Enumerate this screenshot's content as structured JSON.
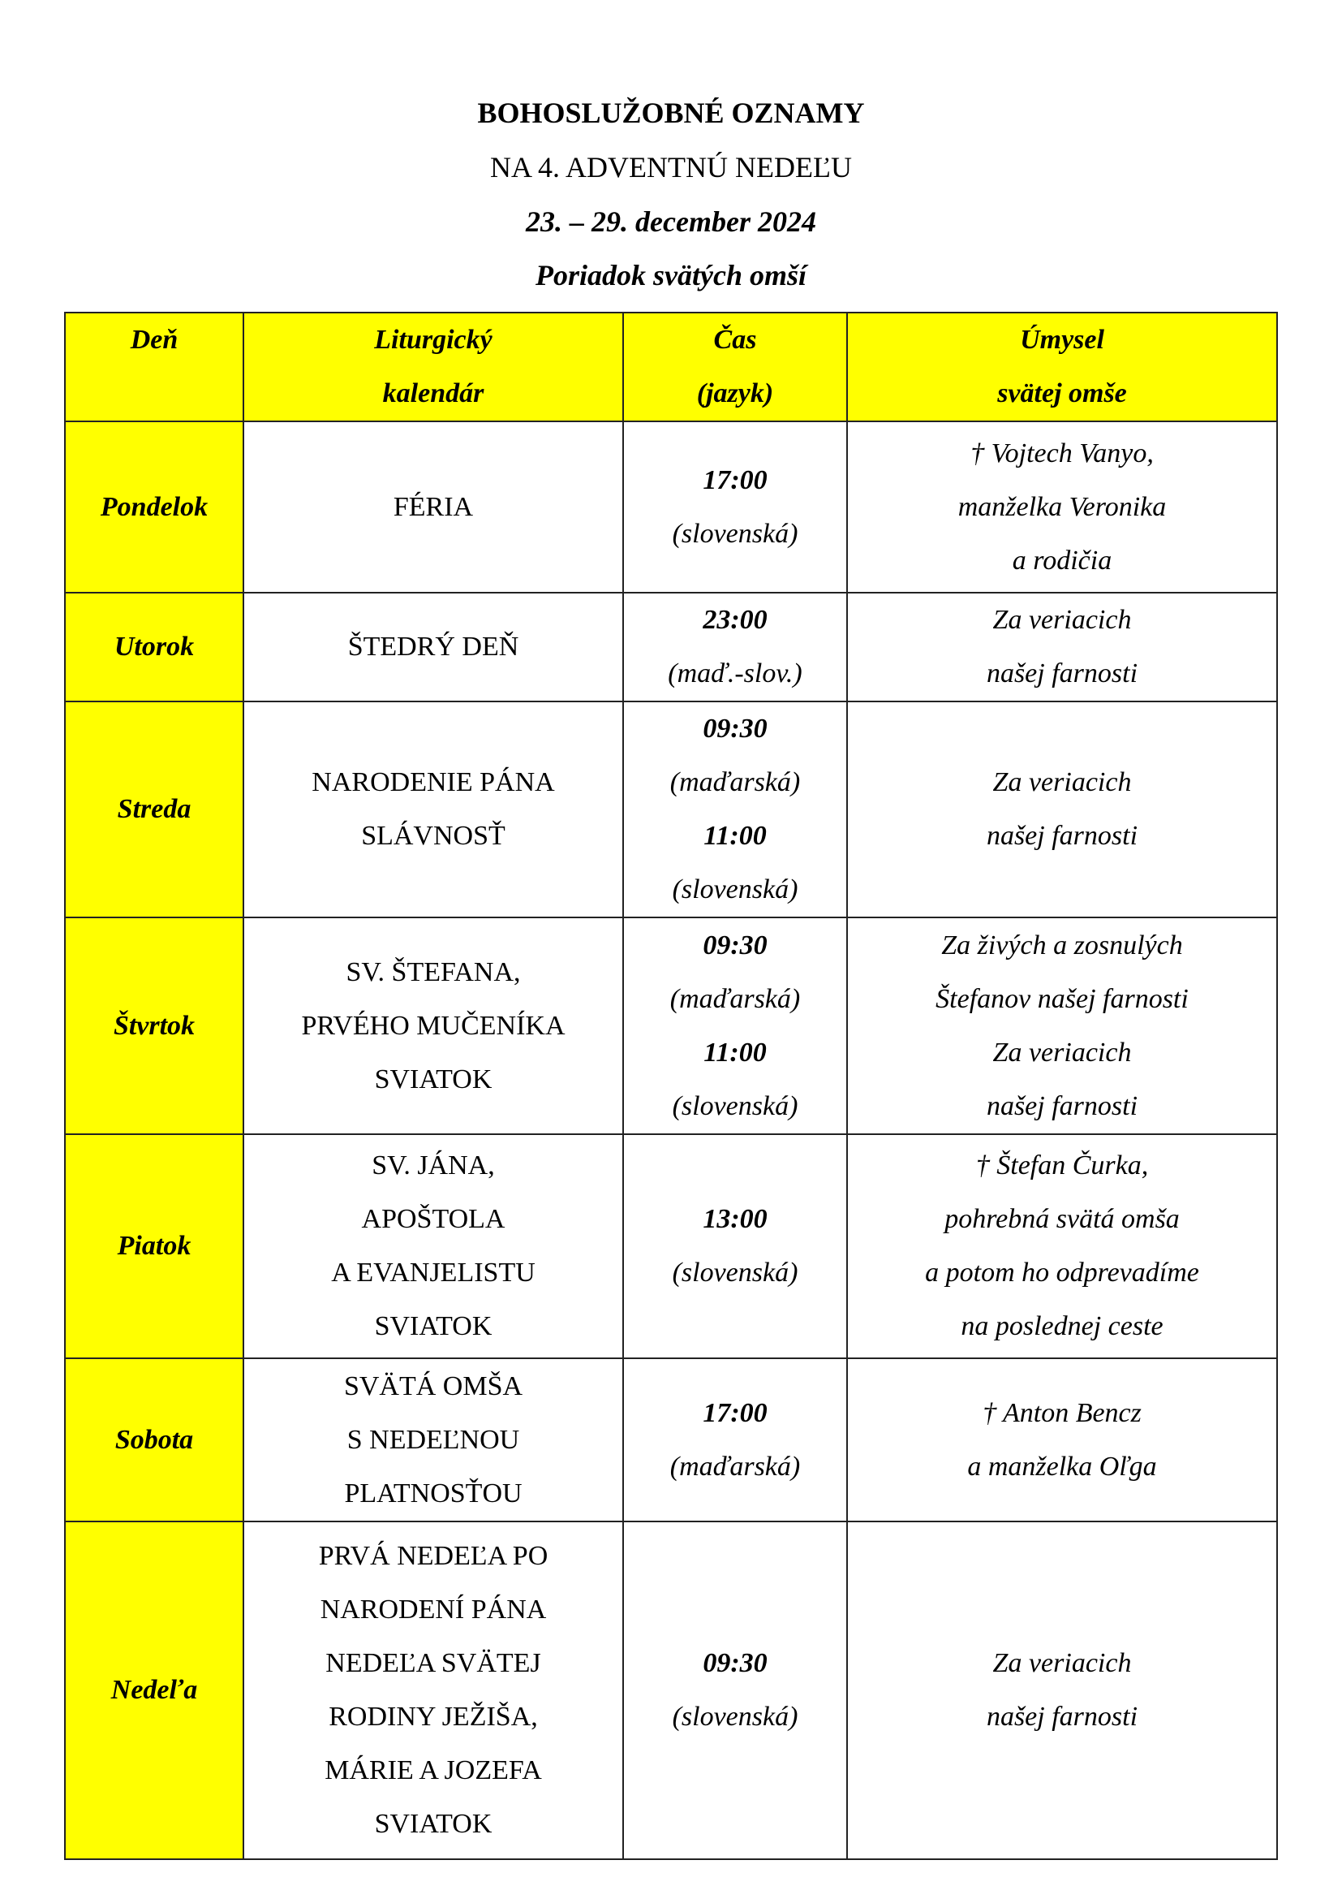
{
  "header": {
    "title": "BOHOSLUŽOBNÉ OZNAMY",
    "subtitle": "NA 4. ADVENTNÚ NEDEĽU",
    "dates": "23. – 29. december 2024",
    "section": "Poriadok svätých omší"
  },
  "table": {
    "columns": [
      [
        "Deň"
      ],
      [
        "Liturgický",
        "kalendár"
      ],
      [
        "Čas",
        "(jazyk)"
      ],
      [
        "Úmysel",
        "svätej omše"
      ]
    ],
    "rows": [
      {
        "day": "Pondelok",
        "calendar": [
          "FÉRIA"
        ],
        "times": [
          [
            "17:00",
            "(slovenská)"
          ]
        ],
        "intention": [
          "† Vojtech Vanyo,",
          "manželka Veronika",
          "a rodičia"
        ]
      },
      {
        "day": "Utorok",
        "calendar": [
          "ŠTEDRÝ DEŇ"
        ],
        "times": [
          [
            "23:00",
            "(maď.-slov.)"
          ]
        ],
        "intention": [
          "Za veriacich",
          "našej farnosti"
        ]
      },
      {
        "day": "Streda",
        "calendar": [
          "NARODENIE PÁNA",
          "SLÁVNOSŤ"
        ],
        "times": [
          [
            "09:30",
            "(maďarská)"
          ],
          [
            "11:00",
            "(slovenská)"
          ]
        ],
        "intention": [
          "Za veriacich",
          "našej farnosti"
        ]
      },
      {
        "day": "Štvrtok",
        "calendar": [
          "SV. ŠTEFANA,",
          "PRVÉHO MUČENÍKA",
          "SVIATOK"
        ],
        "times": [
          [
            "09:30",
            "(maďarská)"
          ],
          [
            "11:00",
            "(slovenská)"
          ]
        ],
        "intention": [
          "Za živých a zosnulých",
          "Štefanov našej farnosti",
          "Za veriacich",
          "našej farnosti"
        ]
      },
      {
        "day": "Piatok",
        "calendar": [
          "SV. JÁNA,",
          "APOŠTOLA",
          "A EVANJELISTU",
          "SVIATOK"
        ],
        "times": [
          [
            "13:00",
            "(slovenská)"
          ]
        ],
        "intention": [
          "† Štefan Čurka,",
          "pohrebná svätá omša",
          "a potom ho odprevadíme",
          "na poslednej ceste"
        ]
      },
      {
        "day": "Sobota",
        "calendar": [
          "SVÄTÁ OMŠA",
          "S NEDEĽNOU",
          "PLATNOSŤOU"
        ],
        "times": [
          [
            "17:00",
            "(maďarská)"
          ]
        ],
        "intention": [
          "† Anton Bencz",
          "a manželka Oľga"
        ]
      },
      {
        "day": "Nedeľa",
        "calendar": [
          "PRVÁ NEDEĽA PO",
          "NARODENÍ PÁNA",
          "NEDEĽA SVÄTEJ",
          "RODINY JEŽIŠA,",
          "MÁRIE A JOZEFA",
          "SVIATOK"
        ],
        "times": [
          [
            "09:30",
            "(slovenská)"
          ]
        ],
        "intention": [
          "Za veriacich",
          "našej farnosti"
        ]
      }
    ]
  },
  "colors": {
    "highlight": "#ffff00"
  }
}
